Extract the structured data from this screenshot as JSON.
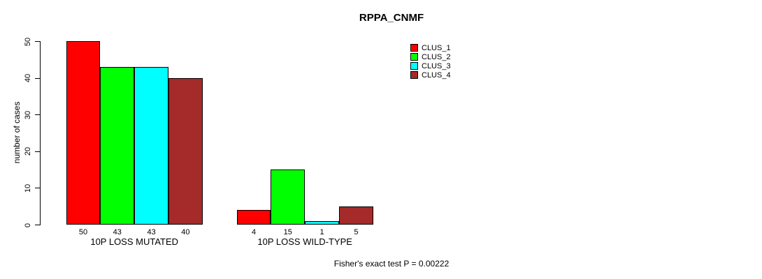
{
  "chart_data": {
    "type": "bar",
    "title": "RPPA_CNMF",
    "ylabel": "number of cases",
    "xlabel": "",
    "categories": [
      "10P LOSS MUTATED",
      "10P LOSS WILD-TYPE"
    ],
    "series": [
      {
        "name": "CLUS_1",
        "color": "#ff0000",
        "values": [
          50,
          4
        ]
      },
      {
        "name": "CLUS_2",
        "color": "#00ff00",
        "values": [
          43,
          15
        ]
      },
      {
        "name": "CLUS_3",
        "color": "#00ffff",
        "values": [
          43,
          1
        ]
      },
      {
        "name": "CLUS_4",
        "color": "#a52a2a",
        "values": [
          40,
          5
        ]
      }
    ],
    "bar_value_labels": [
      [
        50,
        43,
        43,
        40
      ],
      [
        4,
        15,
        1,
        5
      ]
    ],
    "yticks": [
      0,
      10,
      20,
      30,
      40,
      50
    ],
    "ylim": [
      0,
      50
    ],
    "grid": false,
    "legend_position": "inside-top-right",
    "annotation": "Fisher's exact test P = 0.00222",
    "colors": {
      "background": "#ffffff",
      "text": "#000000",
      "bar_border": "#000000"
    }
  }
}
